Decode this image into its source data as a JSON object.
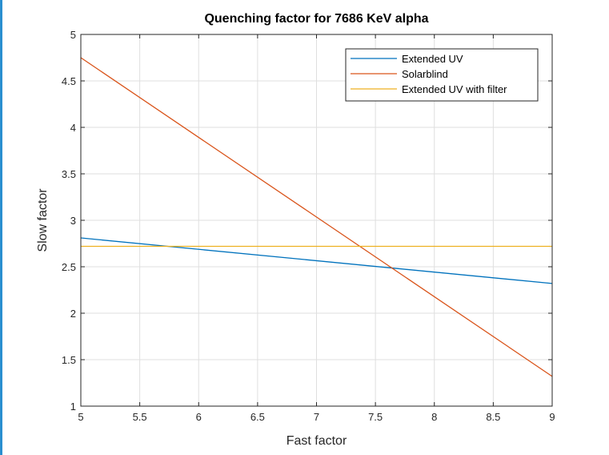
{
  "chart_data": {
    "type": "line",
    "title": "Quenching factor for 7686 KeV alpha",
    "xlabel": "Fast factor",
    "ylabel": "Slow factor",
    "xlim": [
      5,
      9
    ],
    "ylim": [
      1,
      5
    ],
    "xticks": [
      5,
      5.5,
      6,
      6.5,
      7,
      7.5,
      8,
      8.5,
      9
    ],
    "xtick_labels": [
      "5",
      "5.5",
      "6",
      "6.5",
      "7",
      "7.5",
      "8",
      "8.5",
      "9"
    ],
    "yticks": [
      1,
      1.5,
      2,
      2.5,
      3,
      3.5,
      4,
      4.5,
      5
    ],
    "ytick_labels": [
      "1",
      "1.5",
      "2",
      "2.5",
      "3",
      "3.5",
      "4",
      "4.5",
      "5"
    ],
    "grid": true,
    "legend_position": "top-right",
    "series": [
      {
        "name": "Extended UV",
        "color": "#0072BD",
        "x": [
          5,
          9
        ],
        "y": [
          2.81,
          2.32
        ]
      },
      {
        "name": "Solarblind",
        "color": "#D95319",
        "x": [
          5,
          9
        ],
        "y": [
          4.75,
          1.32
        ]
      },
      {
        "name": "Extended UV with filter",
        "color": "#EDB120",
        "x": [
          5,
          9
        ],
        "y": [
          2.72,
          2.72
        ]
      }
    ]
  }
}
